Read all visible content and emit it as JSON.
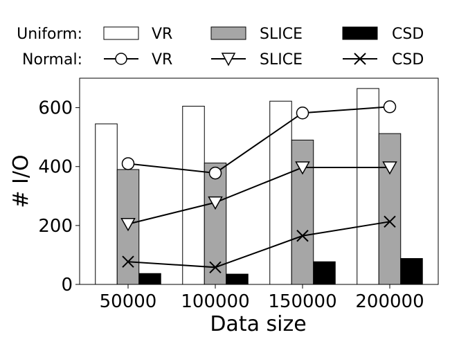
{
  "chart_data": {
    "type": "bar",
    "xlabel": "Data size",
    "ylabel": "# I/O",
    "categories": [
      "50000",
      "100000",
      "150000",
      "200000"
    ],
    "ylim": [
      0,
      700
    ],
    "yticks": [
      0,
      200,
      400,
      600
    ],
    "grid": false,
    "legend": {
      "placement": "top",
      "groups": [
        {
          "label": "Uniform:",
          "entries": [
            "VR",
            "SLICE",
            "CSD"
          ]
        },
        {
          "label": "Normal:",
          "entries": [
            "VR",
            "SLICE",
            "CSD"
          ]
        }
      ]
    },
    "bar_series": [
      {
        "name": "VR",
        "group": "Uniform",
        "values": [
          545,
          605,
          622,
          665
        ],
        "fill": "#ffffff"
      },
      {
        "name": "SLICE",
        "group": "Uniform",
        "values": [
          390,
          412,
          490,
          512
        ],
        "fill": "#a6a6a6"
      },
      {
        "name": "CSD",
        "group": "Uniform",
        "values": [
          37,
          35,
          77,
          88
        ],
        "fill": "#000000"
      }
    ],
    "line_series": [
      {
        "name": "VR",
        "group": "Normal",
        "marker": "circle",
        "values": [
          410,
          378,
          582,
          603
        ]
      },
      {
        "name": "SLICE",
        "group": "Normal",
        "marker": "triangle-down",
        "values": [
          205,
          278,
          397,
          397
        ]
      },
      {
        "name": "CSD",
        "group": "Normal",
        "marker": "x",
        "values": [
          77,
          58,
          165,
          213
        ]
      }
    ]
  }
}
